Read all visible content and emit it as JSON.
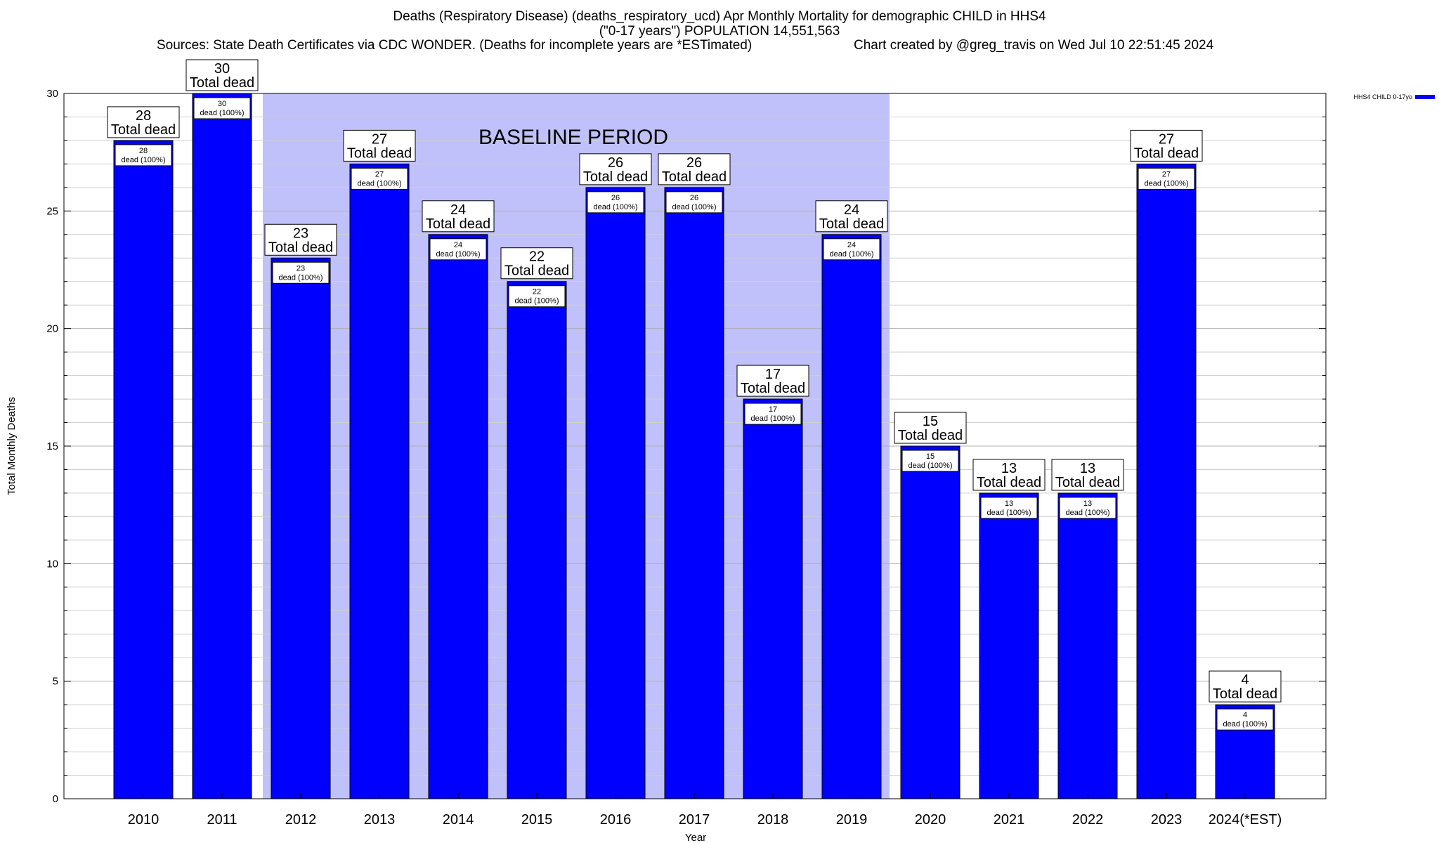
{
  "header": {
    "title_line1": "Deaths (Respiratory Disease) (deaths_respiratory_ucd) Apr Monthly Mortality for demographic CHILD in HHS4",
    "title_line2": "(\"0-17 years\") POPULATION 14,551,563",
    "sources": "Sources: State Death Certificates via CDC WONDER. (Deaths for incomplete years are *ESTimated)",
    "credit": "Chart created by @greg_travis on Wed Jul 10 22:51:45 2024"
  },
  "chart_data": {
    "type": "bar",
    "categories": [
      "2010",
      "2011",
      "2012",
      "2013",
      "2014",
      "2015",
      "2016",
      "2017",
      "2018",
      "2019",
      "2020",
      "2021",
      "2022",
      "2023",
      "2024(*EST)"
    ],
    "series": [
      {
        "name": "HHS4 CHILD 0-17yo",
        "values": [
          28,
          30,
          23,
          27,
          24,
          22,
          26,
          26,
          17,
          24,
          15,
          13,
          13,
          27,
          4
        ],
        "color": "#0000ff"
      }
    ],
    "xlabel": "Year",
    "ylabel": "Total Monthly Deaths",
    "ylim": [
      0,
      30
    ],
    "yticks": [
      0,
      5,
      10,
      15,
      20,
      25,
      30
    ],
    "grid": true,
    "legend_position": "top-right",
    "baseline": {
      "label": "BASELINE PERIOD",
      "from": "2012",
      "to": "2019",
      "color": "#c0c0fa"
    },
    "top_label_suffix": "Total dead",
    "inner_label_suffix": "dead (100%)"
  }
}
